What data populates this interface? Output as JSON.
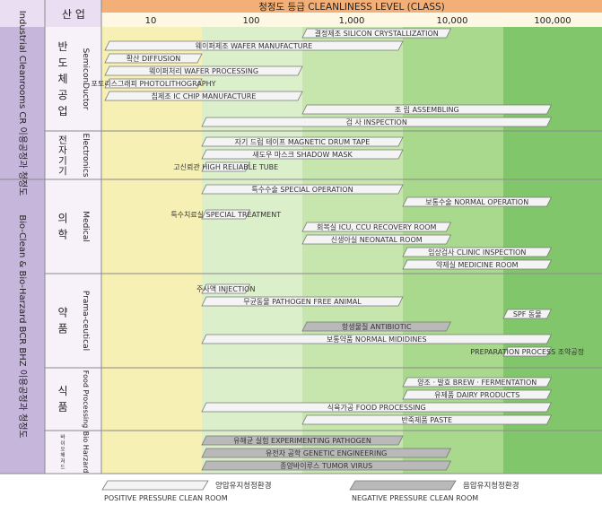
{
  "header": {
    "industry": "산 업",
    "title": "청정도 등급 CLEANLINESS LEVEL (CLASS)",
    "scale": [
      "10",
      "100",
      "1,000",
      "10,000",
      "100,000"
    ]
  },
  "side_labels": {
    "industrial": "Industrial Cleanrooms CR 이용공정과 청정도",
    "bio": "Bio-Clean & Bio-Harzard BCR BHZ 이용공정과 청정도"
  },
  "groups": [
    {
      "ko": "반도체공업",
      "en": "SemiconDuctor"
    },
    {
      "ko": "전자기기",
      "en": "Electronics"
    },
    {
      "ko": "의학",
      "en": "Medical"
    },
    {
      "ko": "약품",
      "en": "Prama-ceutical"
    },
    {
      "ko": "식품",
      "en": "Food Processing"
    },
    {
      "ko": "바이오해저드",
      "en": "Bio Harzard"
    }
  ],
  "legend": {
    "positive_ko": "양압유지청정환경",
    "positive_en": "POSITIVE PRESSURE CLEAN ROOM",
    "negative_ko": "음압유지청정환경",
    "negative_en": "NEGATIVE PRESSURE CLEAN ROOM"
  },
  "colors": {
    "band_yellow": "#f6f0b4",
    "band_green_light": "#d9efc8",
    "band_green_mid": "#b8e09c",
    "band_green_dark": "#7cc46a",
    "header_orange": "#f2b078",
    "side_purple": "#c7b6db",
    "positive_bar": "#f4f4f4",
    "negative_bar": "#b9b9b9"
  },
  "chart_data": {
    "type": "range-bar",
    "x_scale": "log",
    "xlim": [
      10,
      100000
    ],
    "xticks": [
      "10",
      "100",
      "1,000",
      "10,000",
      "100,000"
    ],
    "title": "청정도 등급 CLEANLINESS LEVEL (CLASS)",
    "rows": [
      {
        "label": "결정제조 SILICON CRYSTALLIZATION",
        "x0": 1000,
        "x1": 30000,
        "kind": "positive"
      },
      {
        "label": "웨이퍼제조 WAFER MANUFACTURE",
        "x0": 10,
        "x1": 10000,
        "kind": "positive"
      },
      {
        "label": "확산 DIFFUSION",
        "x0": 10,
        "x1": 100,
        "kind": "positive"
      },
      {
        "label": "웨이퍼처리 WAFER PROCESSING",
        "x0": 10,
        "x1": 1000,
        "kind": "positive"
      },
      {
        "label": "포토리스그래피 PHOTOLITHOGRAPHY",
        "x0": 10,
        "x1": 100,
        "kind": "positive"
      },
      {
        "label": "칩제조 IC CHIP MANUFACTURE",
        "x0": 10,
        "x1": 1000,
        "kind": "positive"
      },
      {
        "label": "조 립 ASSEMBLING",
        "x0": 1000,
        "x1": 300000,
        "kind": "positive"
      },
      {
        "label": "검 사 INSPECTION",
        "x0": 100,
        "x1": 300000,
        "kind": "positive"
      },
      {
        "label": "자기 드럼 테이프 MAGNETIC DRUM TAPE",
        "x0": 100,
        "x1": 10000,
        "kind": "positive"
      },
      {
        "label": "섀도우 마스크 SHADOW MASK",
        "x0": 100,
        "x1": 10000,
        "kind": "positive"
      },
      {
        "label": "고신뢰관 HIGH RELIABLE TUBE",
        "x0": 100,
        "x1": 300,
        "kind": "positive"
      },
      {
        "label": "특수수술 SPECIAL OPERATION",
        "x0": 100,
        "x1": 10000,
        "kind": "positive"
      },
      {
        "label": "보통수술 NORMAL OPERATION",
        "x0": 10000,
        "x1": 300000,
        "kind": "positive"
      },
      {
        "label": "특수치료실 SPECIAL TREATMENT",
        "x0": 100,
        "x1": 300,
        "kind": "positive"
      },
      {
        "label": "회복실 ICU, CCU RECOVERY ROOM",
        "x0": 1000,
        "x1": 30000,
        "kind": "positive"
      },
      {
        "label": "신생아실 NEONATAL ROOM",
        "x0": 1000,
        "x1": 30000,
        "kind": "positive"
      },
      {
        "label": "임상검사 CLINIC INSPECTION",
        "x0": 10000,
        "x1": 300000,
        "kind": "positive"
      },
      {
        "label": "약제실 MEDICINE ROOM",
        "x0": 10000,
        "x1": 300000,
        "kind": "positive"
      },
      {
        "label": "주사액 INJECTION",
        "x0": 100,
        "x1": 300,
        "kind": "positive"
      },
      {
        "label": "무균동물 PATHOGEN FREE ANIMAL",
        "x0": 100,
        "x1": 10000,
        "kind": "positive"
      },
      {
        "label": "SPF 동물",
        "x0": 100000,
        "x1": 300000,
        "kind": "positive"
      },
      {
        "label": "항생물질 ANTIBIOTIC",
        "x0": 1000,
        "x1": 30000,
        "kind": "negative"
      },
      {
        "label": "보통약품 NORMAL MIDIDINES",
        "x0": 100,
        "x1": 300000,
        "kind": "positive"
      },
      {
        "label": "PREPARATION PROCESS 조약공정",
        "x0": 100000,
        "x1": 300000,
        "kind": "positive"
      },
      {
        "label": "양조 · 발효 BREW · FERMENTATION",
        "x0": 10000,
        "x1": 300000,
        "kind": "positive"
      },
      {
        "label": "유제품 DAIRY PRODUCTS",
        "x0": 10000,
        "x1": 300000,
        "kind": "positive"
      },
      {
        "label": "식육가공 FOOD PROCESSING",
        "x0": 100,
        "x1": 300000,
        "kind": "positive"
      },
      {
        "label": "반죽제품 PASTE",
        "x0": 1000,
        "x1": 300000,
        "kind": "positive"
      },
      {
        "label": "유해균 실험 EXPERIMENTING PATHOGEN",
        "x0": 100,
        "x1": 10000,
        "kind": "negative"
      },
      {
        "label": "유전자 공학 GENETIC ENGINEERING",
        "x0": 100,
        "x1": 30000,
        "kind": "negative"
      },
      {
        "label": "종양바이루스 TUMOR VIRUS",
        "x0": 100,
        "x1": 30000,
        "kind": "negative"
      }
    ]
  }
}
